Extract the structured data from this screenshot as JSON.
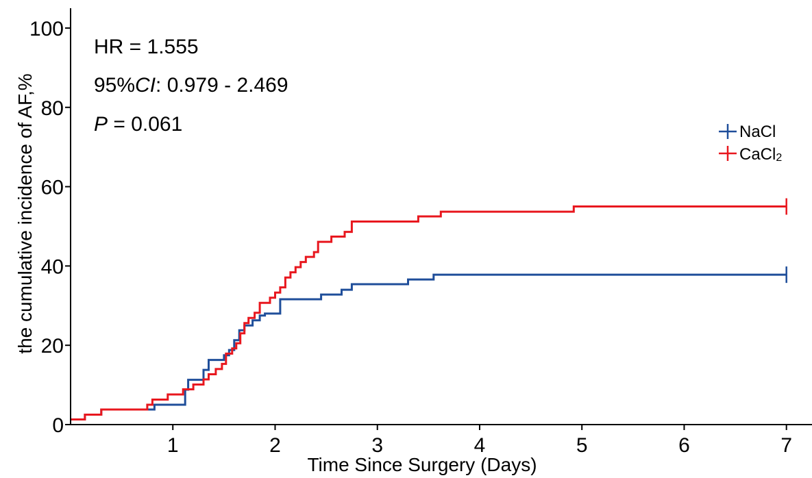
{
  "chart_data": {
    "type": "line",
    "subtype": "step",
    "xlabel": "Time Since Surgery (Days)",
    "ylabel": "the cumulative incidence of AF,%",
    "xlim": [
      0,
      7.25
    ],
    "ylim": [
      0,
      105
    ],
    "xticks": [
      1,
      2,
      3,
      4,
      5,
      6,
      7
    ],
    "yticks": [
      0,
      20,
      40,
      60,
      80,
      100
    ],
    "grid": false,
    "legend_position": "top-right",
    "annotations": {
      "hr": "HR = 1.555",
      "ci_prefix": "95%",
      "ci_italic": "CI",
      "ci_rest": ": 0.979 - 2.469",
      "p_italic": "P",
      "p_rest": " = 0.061"
    },
    "series": [
      {
        "name": "NaCl",
        "legend_main": "NaCl",
        "color": "#1f4e9a",
        "x": [
          0,
          0.14,
          0.3,
          0.8,
          0.82,
          1.12,
          1.15,
          1.3,
          1.35,
          1.4,
          1.5,
          1.55,
          1.6,
          1.65,
          1.7,
          1.72,
          1.78,
          1.85,
          1.9,
          2.05,
          2.45,
          2.6,
          2.65,
          2.75,
          3.3,
          3.55,
          7.0
        ],
        "y": [
          1.3,
          2.5,
          3.8,
          3.8,
          5.0,
          8.8,
          11.3,
          13.8,
          16.3,
          16.3,
          17.5,
          18.8,
          21.3,
          23.8,
          25.0,
          25.0,
          26.3,
          27.5,
          28.0,
          31.6,
          32.8,
          32.8,
          34.0,
          35.4,
          36.6,
          37.8,
          37.8
        ],
        "censor_x": 7.0
      },
      {
        "name": "CaCl2",
        "legend_main": "CaCl",
        "legend_sub": "2",
        "color": "#e8171e",
        "x": [
          0,
          0.14,
          0.3,
          0.75,
          0.8,
          0.95,
          1.1,
          1.2,
          1.3,
          1.35,
          1.42,
          1.48,
          1.52,
          1.58,
          1.62,
          1.66,
          1.7,
          1.74,
          1.8,
          1.85,
          1.95,
          2.0,
          2.05,
          2.1,
          2.15,
          2.2,
          2.25,
          2.3,
          2.38,
          2.42,
          2.55,
          2.68,
          2.75,
          3.4,
          3.62,
          4.92,
          7.0
        ],
        "y": [
          1.3,
          2.5,
          3.8,
          5.0,
          6.3,
          7.6,
          8.9,
          10.1,
          11.4,
          12.7,
          14.0,
          15.3,
          17.9,
          19.2,
          20.5,
          23.0,
          25.6,
          26.9,
          28.2,
          30.7,
          32.0,
          33.3,
          34.6,
          37.1,
          38.4,
          39.7,
          41.0,
          42.3,
          43.5,
          46.1,
          47.4,
          48.6,
          51.2,
          52.5,
          53.7,
          55.0,
          55.0
        ],
        "censor_x": 7.0
      }
    ]
  }
}
